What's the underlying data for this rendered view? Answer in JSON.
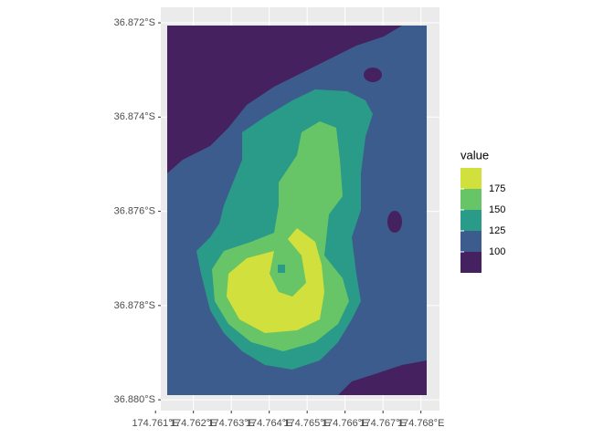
{
  "chart_data": {
    "type": "raster",
    "xlim": [
      174.76114,
      174.76849
    ],
    "ylim": [
      -36.88023,
      -36.87167
    ],
    "xticks": [
      {
        "value": 174.761,
        "label": "174.761°E"
      },
      {
        "value": 174.762,
        "label": "174.762°E"
      },
      {
        "value": 174.763,
        "label": "174.763°E"
      },
      {
        "value": 174.764,
        "label": "174.764°E"
      },
      {
        "value": 174.765,
        "label": "174.765°E"
      },
      {
        "value": 174.766,
        "label": "174.766°E"
      },
      {
        "value": 174.767,
        "label": "174.767°E"
      },
      {
        "value": 174.768,
        "label": "174.768°E"
      }
    ],
    "yticks": [
      {
        "value": -36.872,
        "label": "36.872°S"
      },
      {
        "value": -36.874,
        "label": "36.874°S"
      },
      {
        "value": -36.876,
        "label": "36.876°S"
      },
      {
        "value": -36.878,
        "label": "36.878°S"
      },
      {
        "value": -36.88,
        "label": "36.880°S"
      }
    ],
    "grid": true,
    "legend": {
      "title": "value",
      "breaks": [
        100,
        125,
        150,
        175
      ],
      "colors": [
        "#46215f",
        "#3b5c8c",
        "#2a9a89",
        "#67c567",
        "#d1e03c"
      ]
    }
  }
}
